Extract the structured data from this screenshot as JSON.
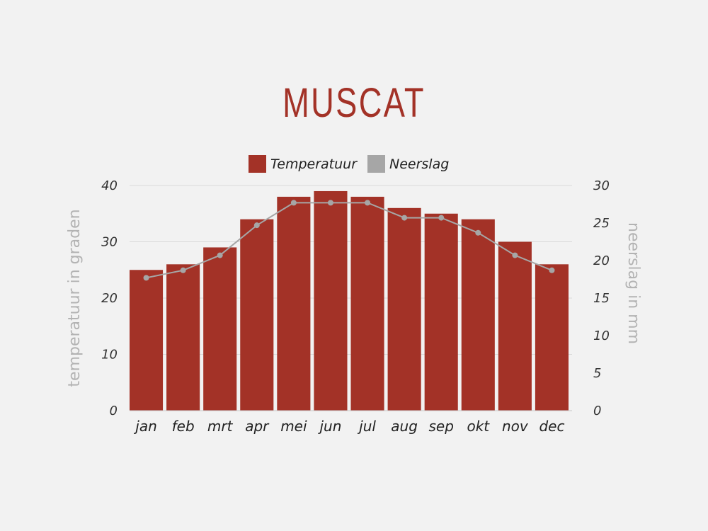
{
  "chart_data": {
    "type": "bar",
    "title": "MUSCAT",
    "categories": [
      "jan",
      "feb",
      "mrt",
      "apr",
      "mei",
      "jun",
      "jul",
      "aug",
      "sep",
      "okt",
      "nov",
      "dec"
    ],
    "series": [
      {
        "name": "Temperatuur",
        "type": "bar",
        "axis": "left",
        "color": "#a33227",
        "values": [
          25,
          26,
          29,
          34,
          38,
          39,
          38,
          36,
          35,
          34,
          30,
          26
        ]
      },
      {
        "name": "Neerslag",
        "type": "line",
        "axis": "right",
        "color": "#a6a6a6",
        "values": [
          17.7,
          18.7,
          20.7,
          24.7,
          27.7,
          27.7,
          27.7,
          25.7,
          25.7,
          23.7,
          20.7,
          18.7
        ]
      }
    ],
    "ylabel_left": "temperatuur in graden",
    "ylabel_right": "neerslag in mm",
    "ylim_left": [
      0,
      40
    ],
    "ylim_right": [
      0,
      30
    ],
    "yticks_left": [
      0,
      10,
      20,
      30,
      40
    ],
    "yticks_right": [
      0,
      5,
      10,
      15,
      20,
      25,
      30
    ],
    "grid": true,
    "legend": "top-center"
  }
}
